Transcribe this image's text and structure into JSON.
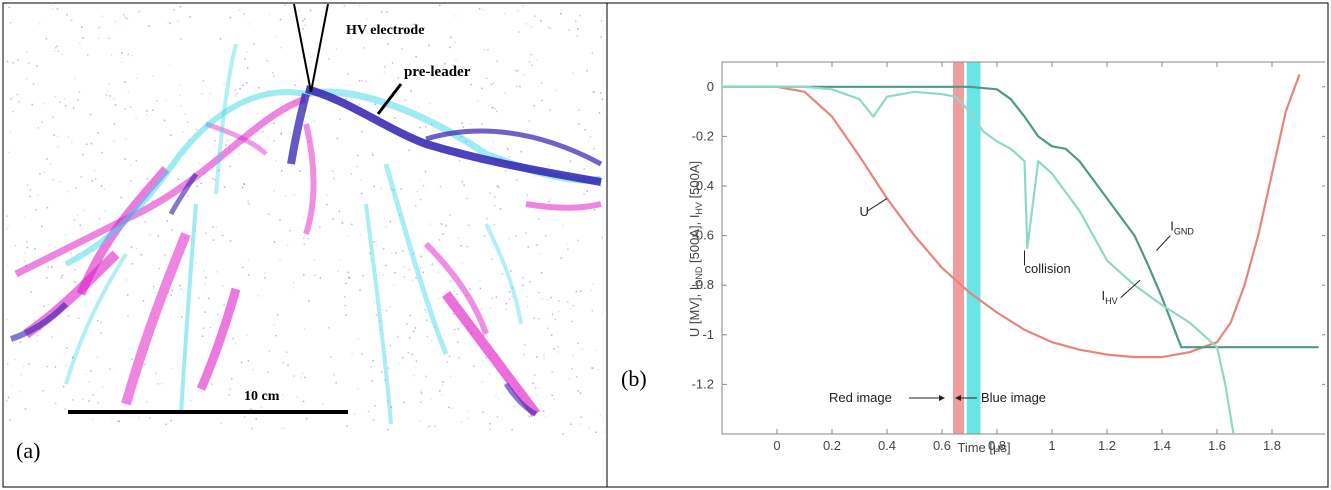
{
  "panel_a": {
    "label": "(a)",
    "electrode_label": "HV electrode",
    "preleader_label": "pre-leader",
    "scale_label": "10 cm"
  },
  "panel_b": {
    "label": "(b)",
    "red_image_label": "Red image",
    "blue_image_label": "Blue image",
    "collision_label": "collision"
  },
  "colors": {
    "U": "#e8847a",
    "I_GND": "#4e9a86",
    "I_HV": "#8fd8c8",
    "red_band": "#f08c8c",
    "blue_band": "#4fe0e0",
    "magenta": "#e020c8",
    "cyan": "#40d8e8",
    "blue": "#3020b0"
  },
  "chart_data": {
    "type": "line",
    "xlabel": "Time [μs]",
    "ylabel": "U [MV], I_GND [500A], I_HV [500A]",
    "ylabel_parts": {
      "a": "U [MV], I",
      "b": "GND",
      "c": " [500A], I",
      "d": "HV",
      "e": " [500A]"
    },
    "xlim": [
      -0.2,
      2.0
    ],
    "ylim": [
      -1.4,
      0.1
    ],
    "x_ticks": [
      0,
      0.2,
      0.4,
      0.6,
      0.8,
      1,
      1.2,
      1.4,
      1.6,
      1.8
    ],
    "x_tick_labels": [
      "0",
      "0.2",
      "0.4",
      "0.6",
      "0.8",
      "1",
      "1.2",
      "1.4",
      "1.6",
      "1.8"
    ],
    "y_ticks": [
      0,
      -0.2,
      -0.4,
      -0.6,
      -0.8,
      -1,
      -1.2
    ],
    "y_tick_labels": [
      "0",
      "-0.2",
      "-0.4",
      "-0.6",
      "-0.8",
      "-1",
      "-1.2"
    ],
    "bands": [
      {
        "name": "Red image",
        "x0": 0.64,
        "x1": 0.68
      },
      {
        "name": "Blue image",
        "x0": 0.69,
        "x1": 0.74
      }
    ],
    "series": [
      {
        "name": "U",
        "x": [
          -0.2,
          0.0,
          0.1,
          0.2,
          0.3,
          0.4,
          0.5,
          0.6,
          0.7,
          0.8,
          0.9,
          1.0,
          1.1,
          1.2,
          1.3,
          1.4,
          1.5,
          1.6,
          1.65,
          1.7,
          1.75,
          1.8,
          1.85,
          1.9
        ],
        "y": [
          0.0,
          0.0,
          -0.02,
          -0.12,
          -0.28,
          -0.45,
          -0.6,
          -0.73,
          -0.83,
          -0.91,
          -0.98,
          -1.03,
          -1.06,
          -1.08,
          -1.09,
          -1.09,
          -1.07,
          -1.03,
          -0.95,
          -0.8,
          -0.6,
          -0.35,
          -0.1,
          0.05
        ]
      },
      {
        "name": "I_GND",
        "x": [
          -0.2,
          0.2,
          0.4,
          0.6,
          0.7,
          0.8,
          0.85,
          0.9,
          0.95,
          1.0,
          1.05,
          1.1,
          1.2,
          1.3,
          1.35,
          1.4,
          1.47,
          1.6,
          1.97
        ],
        "y": [
          0.0,
          0.0,
          0.0,
          0.0,
          0.0,
          -0.01,
          -0.05,
          -0.12,
          -0.2,
          -0.24,
          -0.25,
          -0.3,
          -0.45,
          -0.6,
          -0.72,
          -0.85,
          -1.05,
          -1.05,
          -1.05
        ]
      },
      {
        "name": "I_HV",
        "x": [
          -0.2,
          0.1,
          0.2,
          0.3,
          0.35,
          0.4,
          0.5,
          0.6,
          0.65,
          0.7,
          0.75,
          0.8,
          0.85,
          0.9,
          0.91,
          0.95,
          1.0,
          1.1,
          1.2,
          1.3,
          1.4,
          1.5,
          1.6,
          1.63,
          1.66
        ],
        "y": [
          0.0,
          0.0,
          -0.01,
          -0.05,
          -0.12,
          -0.04,
          -0.02,
          -0.03,
          -0.04,
          -0.1,
          -0.18,
          -0.22,
          -0.25,
          -0.3,
          -0.65,
          -0.3,
          -0.35,
          -0.5,
          -0.7,
          -0.8,
          -0.88,
          -0.95,
          -1.05,
          -1.2,
          -1.4
        ]
      }
    ],
    "annotations": [
      {
        "text": "U",
        "x": 0.3,
        "y": -0.52
      },
      {
        "text": "collision",
        "x": 0.9,
        "y": -0.75
      },
      {
        "text": "I_GND",
        "x": 1.43,
        "y": -0.58
      },
      {
        "text": "I_HV",
        "x": 1.18,
        "y": -0.86
      }
    ]
  }
}
